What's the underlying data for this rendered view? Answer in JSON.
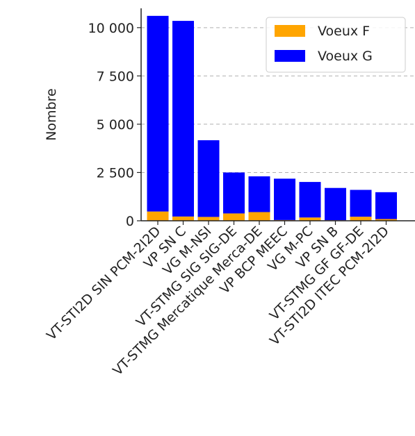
{
  "chart_data": {
    "type": "bar",
    "stacked": true,
    "title": "",
    "xlabel": "",
    "ylabel": "Nombre",
    "categories": [
      "VT-STI2D SIN PCM-2I2D",
      "VP SN C",
      "VG M-NSI",
      "VT-STMG SIG SIG-DE",
      "VT-STMG Mercatique Merca-DE",
      "VP BCP MEEC",
      "VG M-PC",
      "VP SN B",
      "VT-STMG GF GF-DE",
      "VT-STI2D ITEC PCM-2I2D"
    ],
    "series": [
      {
        "name": "Voeux F",
        "color": "#ffa500",
        "values": [
          480,
          220,
          200,
          380,
          450,
          40,
          170,
          30,
          210,
          90
        ]
      },
      {
        "name": "Voeux G",
        "color": "#0000ff",
        "values": [
          10130,
          10130,
          3970,
          2120,
          1850,
          2140,
          1840,
          1670,
          1390,
          1390
        ]
      }
    ],
    "ylim": [
      0,
      11000
    ],
    "yticks": [
      0,
      2500,
      5000,
      7500,
      10000
    ],
    "ytick_labels": [
      "0",
      "2 500",
      "5 000",
      "7 500",
      "10 000"
    ],
    "grid": "y-dashed",
    "legend": "top-right"
  }
}
